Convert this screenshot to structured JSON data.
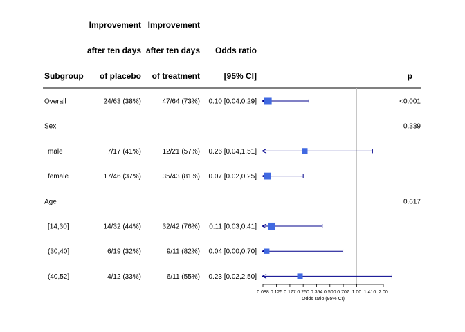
{
  "chart_data": {
    "type": "forest",
    "headers": {
      "subgroup": [
        "Subgroup"
      ],
      "placebo": [
        "Improvement",
        "after ten days",
        "of placebo"
      ],
      "treatment": [
        "Improvement",
        "after ten days",
        "of treatment"
      ],
      "or": [
        "Odds ratio",
        "[95% CI]"
      ],
      "p": [
        "p"
      ]
    },
    "rows": [
      {
        "label": "Overall",
        "indent": false,
        "placebo": "24/63 (38%)",
        "treatment": "47/64 (73%)",
        "or_text": "0.10 [0.04,0.29]",
        "p": "<0.001",
        "est": 0.1,
        "lo": 0.04,
        "hi": 0.29,
        "weight": 1.0
      },
      {
        "label": "Sex",
        "indent": false,
        "placebo": "",
        "treatment": "",
        "or_text": "",
        "p": "0.339"
      },
      {
        "label": "male",
        "indent": true,
        "placebo": "7/17 (41%)",
        "treatment": "12/21 (57%)",
        "or_text": "0.26 [0.04,1.51]",
        "p": "",
        "est": 0.26,
        "lo": 0.04,
        "hi": 1.51,
        "weight": 0.55
      },
      {
        "label": "female",
        "indent": true,
        "placebo": "17/46 (37%)",
        "treatment": "35/43 (81%)",
        "or_text": "0.07 [0.02,0.25]",
        "p": "",
        "est": 0.07,
        "lo": 0.02,
        "hi": 0.25,
        "weight": 0.8
      },
      {
        "label": "Age",
        "indent": false,
        "placebo": "",
        "treatment": "",
        "or_text": "",
        "p": "0.617"
      },
      {
        "label": "[14,30]",
        "indent": true,
        "placebo": "14/32 (44%)",
        "treatment": "32/42 (76%)",
        "or_text": "0.11 [0.03,0.41]",
        "p": "",
        "est": 0.11,
        "lo": 0.03,
        "hi": 0.41,
        "weight": 0.85
      },
      {
        "label": "(30,40]",
        "indent": true,
        "placebo": "6/19 (32%)",
        "treatment": "9/11 (82%)",
        "or_text": "0.04 [0.00,0.70]",
        "p": "",
        "est": 0.04,
        "lo": 0.0,
        "hi": 0.7,
        "weight": 0.4
      },
      {
        "label": "(40,52]",
        "indent": true,
        "placebo": "4/12 (33%)",
        "treatment": "6/11 (55%)",
        "or_text": "0.23 [0.02,2.50]",
        "p": "",
        "est": 0.23,
        "lo": 0.02,
        "hi": 2.5,
        "weight": 0.5
      }
    ],
    "xaxis": {
      "scale": "log",
      "label": "Odds ratio (95% CI)",
      "ticks": [
        0.088,
        0.125,
        0.177,
        0.25,
        0.354,
        0.5,
        0.707,
        1.0,
        1.41,
        2.0
      ],
      "tick_labels": [
        "0.088",
        "0.125",
        "0.177",
        "0.250",
        "0.354",
        "0.500",
        "0.707",
        "1.00",
        "1.410",
        "2.00"
      ],
      "range": [
        0.088,
        2.0
      ],
      "reference_line": 1.0
    },
    "colors": {
      "box": "#4169E1",
      "ci": "#00008B",
      "ref": "#bfbfbf"
    }
  }
}
